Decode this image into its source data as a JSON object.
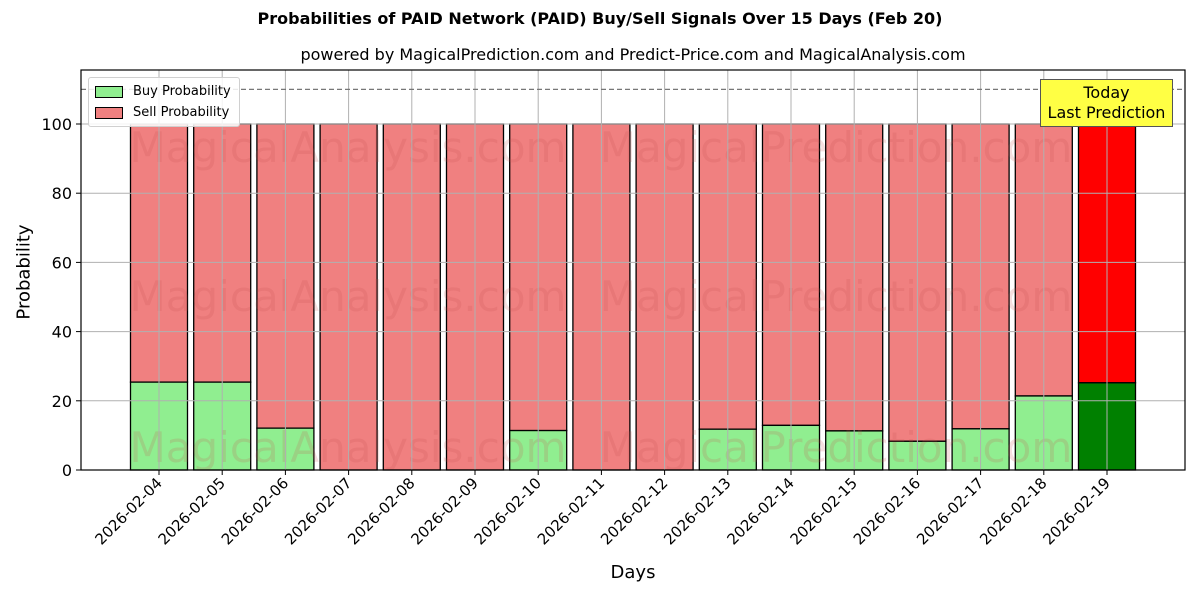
{
  "title": "Probabilities of PAID Network (PAID) Buy/Sell Signals Over 15 Days (Feb 20)",
  "subtitle": "powered by MagicalPrediction.com and Predict-Price.com and MagicalAnalysis.com",
  "legend": {
    "buy": "Buy Probability",
    "sell": "Sell Probability"
  },
  "annotation": {
    "line1": "Today",
    "line2": "Last Prediction"
  },
  "watermarks": [
    "MagicalAnalysis.com",
    "MagicalPrediction.com"
  ],
  "colors": {
    "buy": "#90ee90",
    "sell": "#f08080",
    "today_buy": "#008000",
    "today_sell": "#ff0000",
    "annotation_bg": "#ffff44"
  },
  "chart_data": {
    "type": "bar",
    "stacked": true,
    "title": "Probabilities of PAID Network (PAID) Buy/Sell Signals Over 15 Days (Feb 20)",
    "subtitle": "powered by MagicalPrediction.com and Predict-Price.com and MagicalAnalysis.com",
    "xlabel": "Days",
    "ylabel": "Probability",
    "ylim": [
      0,
      115
    ],
    "yticks": [
      0,
      20,
      40,
      60,
      80,
      100
    ],
    "grid": true,
    "legend_position": "upper left",
    "reference_line": {
      "y": 110,
      "style": "dashed"
    },
    "categories": [
      "2026-02-04",
      "2026-02-05",
      "2026-02-06",
      "2026-02-07",
      "2026-02-08",
      "2026-02-09",
      "2026-02-10",
      "2026-02-11",
      "2026-02-12",
      "2026-02-13",
      "2026-02-14",
      "2026-02-15",
      "2026-02-16",
      "2026-02-17",
      "2026-02-18",
      "2026-02-19"
    ],
    "series": [
      {
        "name": "Buy Probability",
        "values": [
          25.4,
          25.4,
          12.1,
          0,
          0,
          0,
          11.4,
          0,
          0,
          11.8,
          12.9,
          11.3,
          8.3,
          11.9,
          21.4,
          25.2
        ]
      },
      {
        "name": "Sell Probability",
        "values": [
          74.6,
          74.6,
          87.9,
          100,
          100,
          100,
          88.6,
          100,
          100,
          88.2,
          87.1,
          88.7,
          91.7,
          88.1,
          78.6,
          74.8
        ]
      }
    ],
    "highlight": {
      "category": "2026-02-19",
      "label": "Today\nLast Prediction"
    }
  }
}
